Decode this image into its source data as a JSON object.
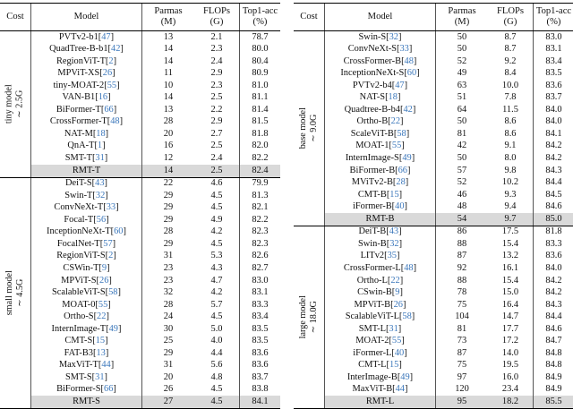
{
  "colors": {
    "citation_blue": "#3b77bb",
    "highlight_gray": "#d9d9d9"
  },
  "headers": {
    "cost": "Cost",
    "model": "Model",
    "params_l1": "Parmas",
    "params_l2": "(M)",
    "flops_l1": "FLOPs",
    "flops_l2": "(G)",
    "acc_l1": "Top1-acc",
    "acc_l2": "(%)"
  },
  "tables": [
    {
      "id": "left",
      "sections": [
        {
          "cost_l1": "tiny model",
          "cost_l2": "∼ 2.5G",
          "rows": [
            {
              "model": "PVTv2-b1",
              "cite": "47",
              "params": "13",
              "flops": "2.1",
              "acc": "78.7",
              "highlight": false
            },
            {
              "model": "QuadTree-B-b1",
              "cite": "42",
              "params": "14",
              "flops": "2.3",
              "acc": "80.0",
              "highlight": false
            },
            {
              "model": "RegionViT-T",
              "cite": "2",
              "params": "14",
              "flops": "2.4",
              "acc": "80.4",
              "highlight": false
            },
            {
              "model": "MPViT-XS",
              "cite": "26",
              "params": "11",
              "flops": "2.9",
              "acc": "80.9",
              "highlight": false
            },
            {
              "model": "tiny-MOAT-2",
              "cite": "55",
              "params": "10",
              "flops": "2.3",
              "acc": "81.0",
              "highlight": false
            },
            {
              "model": "VAN-B1",
              "cite": "16",
              "params": "14",
              "flops": "2.5",
              "acc": "81.1",
              "highlight": false
            },
            {
              "model": "BiFormer-T",
              "cite": "66",
              "params": "13",
              "flops": "2.2",
              "acc": "81.4",
              "highlight": false
            },
            {
              "model": "CrossFormer-T",
              "cite": "48",
              "params": "28",
              "flops": "2.9",
              "acc": "81.5",
              "highlight": false
            },
            {
              "model": "NAT-M",
              "cite": "18",
              "params": "20",
              "flops": "2.7",
              "acc": "81.8",
              "highlight": false
            },
            {
              "model": "QnA-T",
              "cite": "1",
              "params": "16",
              "flops": "2.5",
              "acc": "82.0",
              "highlight": false
            },
            {
              "model": "SMT-T",
              "cite": "31",
              "params": "12",
              "flops": "2.4",
              "acc": "82.2",
              "highlight": false
            },
            {
              "model": "RMT-T",
              "cite": null,
              "params": "14",
              "flops": "2.5",
              "acc": "82.4",
              "highlight": true
            }
          ]
        },
        {
          "cost_l1": "small model",
          "cost_l2": "∼ 4.5G",
          "rows": [
            {
              "model": "DeiT-S",
              "cite": "43",
              "params": "22",
              "flops": "4.6",
              "acc": "79.9",
              "highlight": false
            },
            {
              "model": "Swin-T",
              "cite": "32",
              "params": "29",
              "flops": "4.5",
              "acc": "81.3",
              "highlight": false
            },
            {
              "model": "ConvNeXt-T",
              "cite": "33",
              "params": "29",
              "flops": "4.5",
              "acc": "82.1",
              "highlight": false
            },
            {
              "model": "Focal-T",
              "cite": "56",
              "params": "29",
              "flops": "4.9",
              "acc": "82.2",
              "highlight": false
            },
            {
              "model": "InceptionNeXt-T",
              "cite": "60",
              "params": "28",
              "flops": "4.2",
              "acc": "82.3",
              "highlight": false
            },
            {
              "model": "FocalNet-T",
              "cite": "57",
              "params": "29",
              "flops": "4.5",
              "acc": "82.3",
              "highlight": false
            },
            {
              "model": "RegionViT-S",
              "cite": "2",
              "params": "31",
              "flops": "5.3",
              "acc": "82.6",
              "highlight": false
            },
            {
              "model": "CSWin-T",
              "cite": "9",
              "params": "23",
              "flops": "4.3",
              "acc": "82.7",
              "highlight": false
            },
            {
              "model": "MPViT-S",
              "cite": "26",
              "params": "23",
              "flops": "4.7",
              "acc": "83.0",
              "highlight": false
            },
            {
              "model": "ScalableViT-S",
              "cite": "58",
              "params": "32",
              "flops": "4.2",
              "acc": "83.1",
              "highlight": false
            },
            {
              "model": "MOAT-0",
              "cite": "55",
              "params": "28",
              "flops": "5.7",
              "acc": "83.3",
              "highlight": false
            },
            {
              "model": "Ortho-S",
              "cite": "22",
              "params": "24",
              "flops": "4.5",
              "acc": "83.4",
              "highlight": false
            },
            {
              "model": "InternImage-T",
              "cite": "49",
              "params": "30",
              "flops": "5.0",
              "acc": "83.5",
              "highlight": false
            },
            {
              "model": "CMT-S",
              "cite": "15",
              "params": "25",
              "flops": "4.0",
              "acc": "83.5",
              "highlight": false
            },
            {
              "model": "FAT-B3",
              "cite": "13",
              "params": "29",
              "flops": "4.4",
              "acc": "83.6",
              "highlight": false
            },
            {
              "model": "MaxViT-T",
              "cite": "44",
              "params": "31",
              "flops": "5.6",
              "acc": "83.6",
              "highlight": false
            },
            {
              "model": "SMT-S",
              "cite": "31",
              "params": "20",
              "flops": "4.8",
              "acc": "83.7",
              "highlight": false
            },
            {
              "model": "BiFormer-S",
              "cite": "66",
              "params": "26",
              "flops": "4.5",
              "acc": "83.8",
              "highlight": false
            },
            {
              "model": "RMT-S",
              "cite": null,
              "params": "27",
              "flops": "4.5",
              "acc": "84.1",
              "highlight": true
            }
          ]
        }
      ]
    },
    {
      "id": "right",
      "sections": [
        {
          "cost_l1": "base model",
          "cost_l2": "∼ 9.0G",
          "rows": [
            {
              "model": "Swin-S",
              "cite": "32",
              "params": "50",
              "flops": "8.7",
              "acc": "83.0",
              "highlight": false
            },
            {
              "model": "ConvNeXt-S",
              "cite": "33",
              "params": "50",
              "flops": "8.7",
              "acc": "83.1",
              "highlight": false
            },
            {
              "model": "CrossFormer-B",
              "cite": "48",
              "params": "52",
              "flops": "9.2",
              "acc": "83.4",
              "highlight": false
            },
            {
              "model": "InceptionNeXt-S",
              "cite": "60",
              "params": "49",
              "flops": "8.4",
              "acc": "83.5",
              "highlight": false
            },
            {
              "model": "PVTv2-b4",
              "cite": "47",
              "params": "63",
              "flops": "10.0",
              "acc": "83.6",
              "highlight": false
            },
            {
              "model": "NAT-S",
              "cite": "18",
              "params": "51",
              "flops": "7.8",
              "acc": "83.7",
              "highlight": false
            },
            {
              "model": "Quadtree-B-b4",
              "cite": "42",
              "params": "64",
              "flops": "11.5",
              "acc": "84.0",
              "highlight": false
            },
            {
              "model": "Ortho-B",
              "cite": "22",
              "params": "50",
              "flops": "8.6",
              "acc": "84.0",
              "highlight": false
            },
            {
              "model": "ScaleViT-B",
              "cite": "58",
              "params": "81",
              "flops": "8.6",
              "acc": "84.1",
              "highlight": false
            },
            {
              "model": "MOAT-1",
              "cite": "55",
              "params": "42",
              "flops": "9.1",
              "acc": "84.2",
              "highlight": false
            },
            {
              "model": "InternImage-S",
              "cite": "49",
              "params": "50",
              "flops": "8.0",
              "acc": "84.2",
              "highlight": false
            },
            {
              "model": "BiFormer-B",
              "cite": "66",
              "params": "57",
              "flops": "9.8",
              "acc": "84.3",
              "highlight": false
            },
            {
              "model": "MViTv2-B",
              "cite": "28",
              "params": "52",
              "flops": "10.2",
              "acc": "84.4",
              "highlight": false
            },
            {
              "model": "CMT-B",
              "cite": "15",
              "params": "46",
              "flops": "9.3",
              "acc": "84.5",
              "highlight": false
            },
            {
              "model": "iFormer-B",
              "cite": "40",
              "params": "48",
              "flops": "9.4",
              "acc": "84.6",
              "highlight": false
            },
            {
              "model": "RMT-B",
              "cite": null,
              "params": "54",
              "flops": "9.7",
              "acc": "85.0",
              "highlight": true
            }
          ]
        },
        {
          "cost_l1": "large model",
          "cost_l2": "∼ 18.0G",
          "rows": [
            {
              "model": "DeiT-B",
              "cite": "43",
              "params": "86",
              "flops": "17.5",
              "acc": "81.8",
              "highlight": false
            },
            {
              "model": "Swin-B",
              "cite": "32",
              "params": "88",
              "flops": "15.4",
              "acc": "83.3",
              "highlight": false
            },
            {
              "model": "LITv2",
              "cite": "35",
              "params": "87",
              "flops": "13.2",
              "acc": "83.6",
              "highlight": false
            },
            {
              "model": "CrossFormer-L",
              "cite": "48",
              "params": "92",
              "flops": "16.1",
              "acc": "84.0",
              "highlight": false
            },
            {
              "model": "Ortho-L",
              "cite": "22",
              "params": "88",
              "flops": "15.4",
              "acc": "84.2",
              "highlight": false
            },
            {
              "model": "CSwin-B",
              "cite": "9",
              "params": "78",
              "flops": "15.0",
              "acc": "84.2",
              "highlight": false
            },
            {
              "model": "MPViT-B",
              "cite": "26",
              "params": "75",
              "flops": "16.4",
              "acc": "84.3",
              "highlight": false
            },
            {
              "model": "ScalableViT-L",
              "cite": "58",
              "params": "104",
              "flops": "14.7",
              "acc": "84.4",
              "highlight": false
            },
            {
              "model": "SMT-L",
              "cite": "31",
              "params": "81",
              "flops": "17.7",
              "acc": "84.6",
              "highlight": false
            },
            {
              "model": "MOAT-2",
              "cite": "55",
              "params": "73",
              "flops": "17.2",
              "acc": "84.7",
              "highlight": false
            },
            {
              "model": "iFormer-L",
              "cite": "40",
              "params": "87",
              "flops": "14.0",
              "acc": "84.8",
              "highlight": false
            },
            {
              "model": "CMT-L",
              "cite": "15",
              "params": "75",
              "flops": "19.5",
              "acc": "84.8",
              "highlight": false
            },
            {
              "model": "InterImage-B",
              "cite": "49",
              "params": "97",
              "flops": "16.0",
              "acc": "84.9",
              "highlight": false
            },
            {
              "model": "MaxViT-B",
              "cite": "44",
              "params": "120",
              "flops": "23.4",
              "acc": "84.9",
              "highlight": false
            },
            {
              "model": "RMT-L",
              "cite": null,
              "params": "95",
              "flops": "18.2",
              "acc": "85.5",
              "highlight": true
            }
          ]
        }
      ]
    }
  ]
}
